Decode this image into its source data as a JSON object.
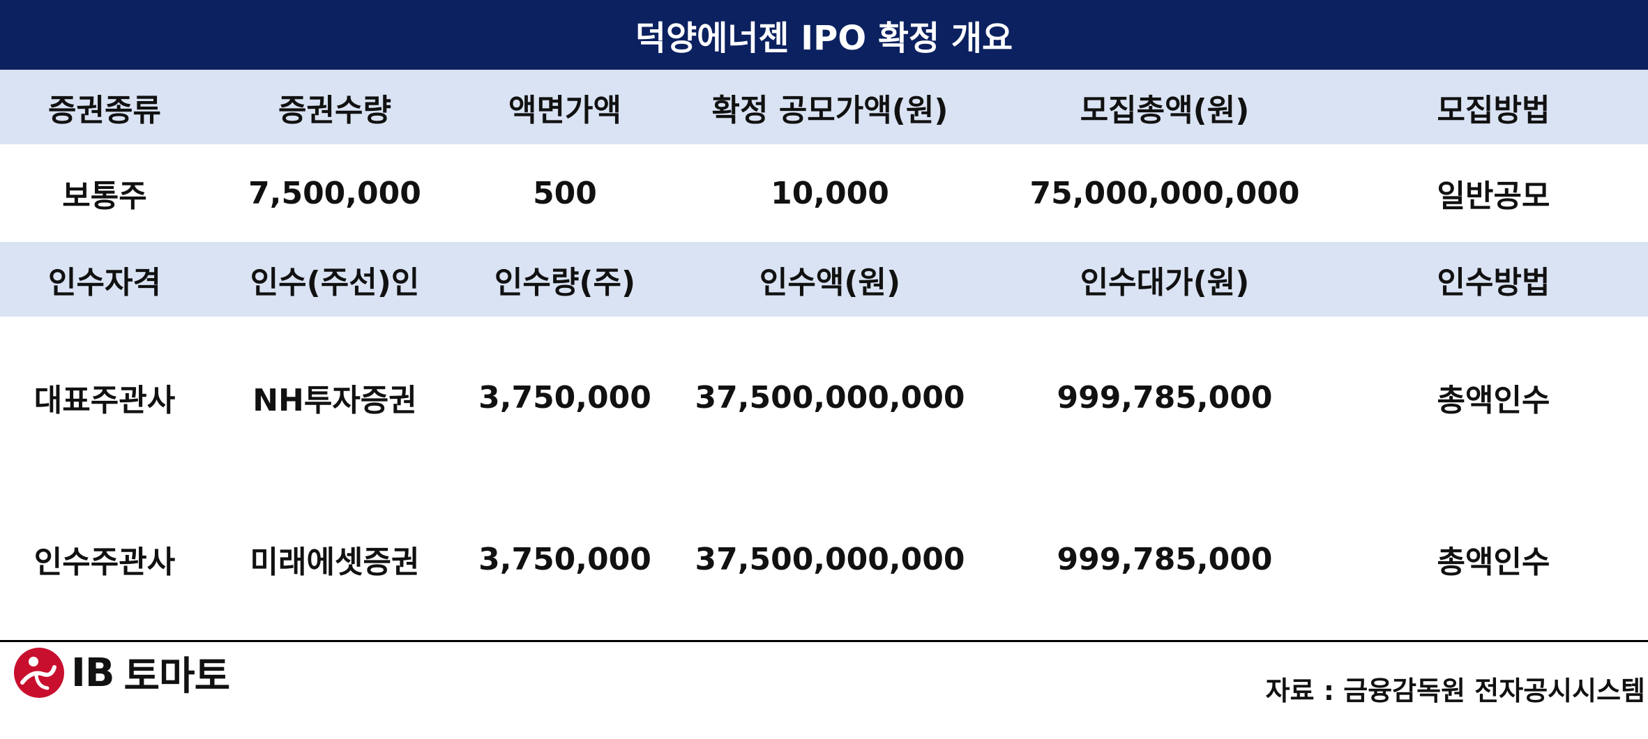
{
  "title": "덕양에너젠 IPO 확정 개요",
  "header1": [
    "증권종류",
    "증권수량",
    "액면가액",
    "확정 공모가액(원)",
    "모집총액(원)",
    "모집방법"
  ],
  "row1": [
    "보통주",
    "7,500,000",
    "500",
    "10,000",
    "75,000,000,000",
    "일반공모"
  ],
  "header2": [
    "인수자격",
    "인수(주선)인",
    "인수량(주)",
    "인수액(원)",
    "인수대가(원)",
    "인수방법"
  ],
  "underwriters": [
    [
      "대표주관사",
      "NH투자증권",
      "3,750,000",
      "37,500,000,000",
      "999,785,000",
      "총액인수"
    ],
    [
      "인수주관사",
      "미래에셋증권",
      "3,750,000",
      "37,500,000,000",
      "999,785,000",
      "총액인수"
    ]
  ],
  "logo": {
    "prefix": "IB",
    "name": "토마토",
    "icon": "ib-tomato-logo-icon",
    "color": "#c8102e"
  },
  "source": "자료 :  금융감독원 전자공시시스템",
  "colors": {
    "title_bg": "#0c2160",
    "header_bg": "#dae3f3"
  }
}
